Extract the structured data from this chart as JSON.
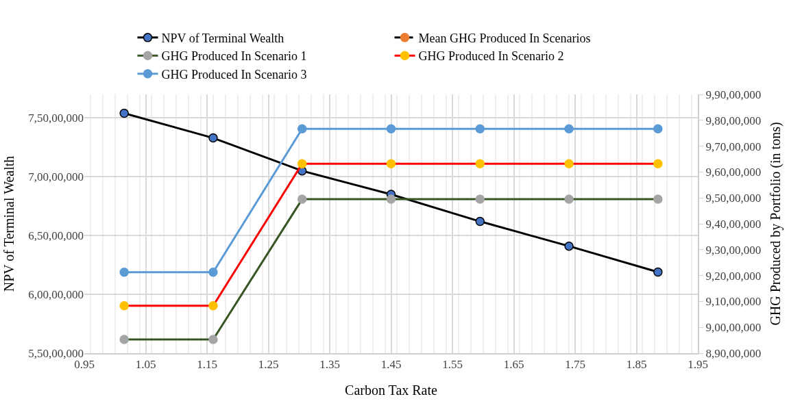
{
  "chart_data": {
    "type": "line",
    "xlabel": "Carbon Tax Rate",
    "ylabel": "NPV of Terminal Wealth",
    "y2label": "GHG Produced by Portfolio (in tons)",
    "x": [
      1.015,
      1.16,
      1.305,
      1.45,
      1.595,
      1.74,
      1.885
    ],
    "xlim": [
      0.95,
      1.95
    ],
    "xticks": [
      {
        "value": 0.95,
        "label": "0.95"
      },
      {
        "value": 1.05,
        "label": "1.05"
      },
      {
        "value": 1.15,
        "label": "1.15"
      },
      {
        "value": 1.25,
        "label": "1.25"
      },
      {
        "value": 1.35,
        "label": "1.35"
      },
      {
        "value": 1.45,
        "label": "1.45"
      },
      {
        "value": 1.55,
        "label": "1.55"
      },
      {
        "value": 1.65,
        "label": "1.65"
      },
      {
        "value": 1.75,
        "label": "1.75"
      },
      {
        "value": 1.85,
        "label": "1.85"
      },
      {
        "value": 1.95,
        "label": "1.95"
      }
    ],
    "ylim": [
      55000000,
      77000000
    ],
    "yticks": [
      {
        "value": 55000000,
        "label": "5,50,00,000"
      },
      {
        "value": 60000000,
        "label": "6,00,00,000"
      },
      {
        "value": 65000000,
        "label": "6,50,00,000"
      },
      {
        "value": 70000000,
        "label": "7,00,00,000"
      },
      {
        "value": 75000000,
        "label": "7,50,00,000"
      }
    ],
    "y2lim": [
      89000000,
      99000000
    ],
    "y2ticks": [
      {
        "value": 89000000,
        "label": "8,90,00,000"
      },
      {
        "value": 90000000,
        "label": "9,00,00,000"
      },
      {
        "value": 91000000,
        "label": "9,10,00,000"
      },
      {
        "value": 92000000,
        "label": "9,20,00,000"
      },
      {
        "value": 93000000,
        "label": "9,30,00,000"
      },
      {
        "value": 94000000,
        "label": "9,40,00,000"
      },
      {
        "value": 95000000,
        "label": "9,50,00,000"
      },
      {
        "value": 96000000,
        "label": "9,60,00,000"
      },
      {
        "value": 97000000,
        "label": "9,70,00,000"
      },
      {
        "value": 98000000,
        "label": "9,80,00,000"
      },
      {
        "value": 99000000,
        "label": "9,90,00,000"
      }
    ],
    "grid": true,
    "legend": "top",
    "marker": "circle",
    "series": [
      {
        "name": "NPV of Terminal Wealth",
        "color": "#000000",
        "colors": [
          "#4472c4",
          "#4472c4",
          "#4472c4",
          "#4472c4",
          "#4472c4",
          "#4472c4",
          "#4472c4"
        ],
        "values": [
          75400000,
          73300000,
          70500000,
          68500000,
          66200000,
          64100000,
          61900000
        ]
      },
      {
        "name": "Mean GHG Produced In Scenarios",
        "color": "#000000",
        "colors": [
          "#ed7d31",
          "#ed7d31",
          "#ed7d31",
          "#ed7d31",
          "#ed7d31",
          "#ed7d31",
          "#ed7d31"
        ],
        "line_style": "dashed",
        "axis": "y2",
        "values": [
          null,
          null,
          null,
          null,
          null,
          null,
          null
        ]
      },
      {
        "name": "GHG Produced In Scenario 1",
        "color": "#375623",
        "colors": [
          "#a5a5a5",
          "#a5a5a5",
          "#a5a5a5",
          "#a5a5a5",
          "#a5a5a5",
          "#a5a5a5",
          "#a5a5a5"
        ],
        "axis": "y2",
        "values": [
          89530000,
          89530000,
          94950000,
          94950000,
          94950000,
          94950000,
          94950000
        ]
      },
      {
        "name": "GHG Produced In Scenario 2",
        "color": "#ff0000",
        "colors": [
          "#ffc000",
          "#ffc000",
          "#ffc000",
          "#ffc000",
          "#ffc000",
          "#ffc000",
          "#ffc000"
        ],
        "axis": "y2",
        "values": [
          90830000,
          90830000,
          96320000,
          96320000,
          96320000,
          96320000,
          96320000
        ]
      },
      {
        "name": "GHG Produced In Scenario 3",
        "color": "#5b9bd5",
        "axis": "y2",
        "values": [
          92130000,
          92130000,
          97670000,
          97670000,
          97670000,
          97670000,
          97670000
        ]
      }
    ]
  }
}
